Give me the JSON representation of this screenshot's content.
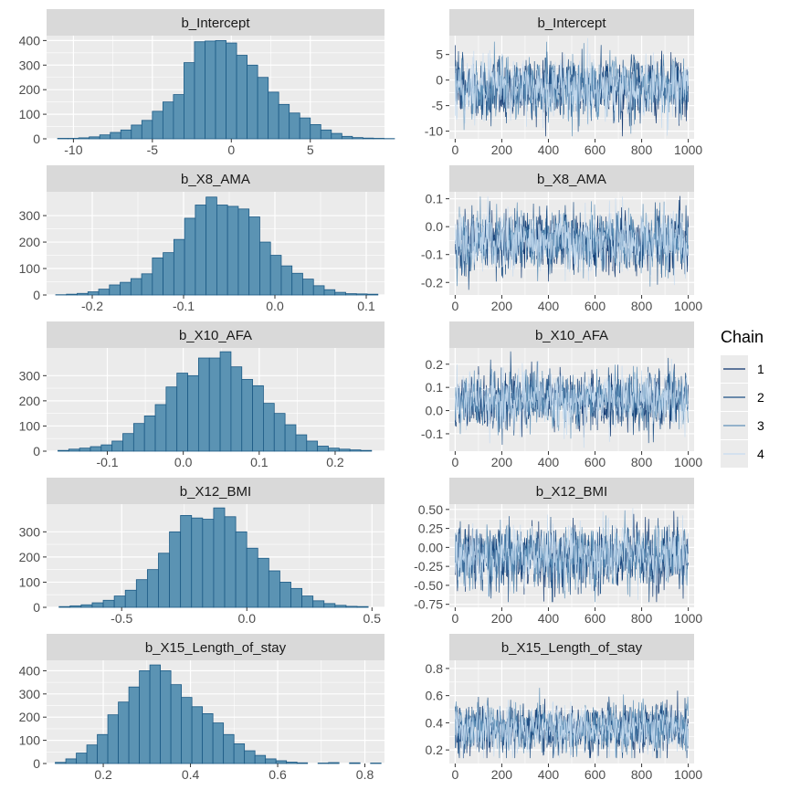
{
  "legend": {
    "title": "Chain",
    "placement": "right",
    "entries": [
      {
        "label": "1",
        "color": "#08306b"
      },
      {
        "label": "2",
        "color": "#1c4f85"
      },
      {
        "label": "3",
        "color": "#5f91b8"
      },
      {
        "label": "4",
        "color": "#c6dbef"
      }
    ]
  },
  "colors": {
    "panel_background": "#ebebeb",
    "strip_background": "#d9d9d9",
    "grid": "#ffffff",
    "hist_fill": "#5b93b3",
    "hist_outline": "#1c5a85"
  },
  "chart_data": [
    {
      "type": "bar",
      "title": "b_Intercept",
      "xlim": [
        -11.7,
        9.7
      ],
      "ylim": [
        0,
        420
      ],
      "xticks": [
        -10,
        -5,
        0,
        5
      ],
      "xtick_labels": [
        "-10",
        "-5",
        "0",
        "5"
      ],
      "yticks": [
        0,
        100,
        200,
        300,
        400
      ],
      "ytick_labels": [
        "0",
        "100",
        "200",
        "300",
        "400"
      ],
      "bin_start": -11.0,
      "bin_width": 0.6667,
      "values": [
        2,
        2,
        4,
        8,
        16,
        26,
        36,
        56,
        75,
        112,
        150,
        180,
        310,
        395,
        398,
        400,
        390,
        340,
        300,
        250,
        190,
        140,
        105,
        85,
        58,
        36,
        22,
        10,
        5,
        3,
        2,
        1
      ]
    },
    {
      "type": "line",
      "title": "b_Intercept",
      "xlim": [
        -25,
        1025
      ],
      "ylim": [
        -11.5,
        8.7
      ],
      "xticks": [
        0,
        200,
        400,
        600,
        800,
        1000
      ],
      "xtick_labels": [
        "0",
        "200",
        "400",
        "600",
        "800",
        "1000"
      ],
      "yticks": [
        -10,
        -5,
        0,
        5
      ],
      "ytick_labels": [
        "-10",
        "-5",
        "0",
        "5"
      ],
      "center": -1.5,
      "sd": 3.0,
      "bounds": [
        -11.0,
        8.2
      ]
    },
    {
      "type": "bar",
      "title": "b_X8_AMA",
      "xlim": [
        -0.25,
        0.12
      ],
      "ylim": [
        0,
        390
      ],
      "xticks": [
        -0.2,
        -0.1,
        0.0,
        0.1
      ],
      "xtick_labels": [
        "-0.2",
        "-0.1",
        "0.0",
        "0.1"
      ],
      "yticks": [
        0,
        100,
        200,
        300
      ],
      "ytick_labels": [
        "0",
        "100",
        "200",
        "300"
      ],
      "bin_start": -0.24,
      "bin_width": 0.01176,
      "values": [
        1,
        3,
        6,
        12,
        22,
        38,
        48,
        62,
        80,
        140,
        160,
        210,
        290,
        340,
        370,
        340,
        335,
        325,
        295,
        200,
        150,
        110,
        82,
        60,
        35,
        20,
        10,
        5,
        4,
        3
      ]
    },
    {
      "type": "line",
      "title": "b_X8_AMA",
      "xlim": [
        -25,
        1025
      ],
      "ylim": [
        -0.245,
        0.125
      ],
      "xticks": [
        0,
        200,
        400,
        600,
        800,
        1000
      ],
      "xtick_labels": [
        "0",
        "200",
        "400",
        "600",
        "800",
        "1000"
      ],
      "yticks": [
        -0.2,
        -0.1,
        0.0,
        0.1
      ],
      "ytick_labels": [
        "-0.2",
        "-0.1",
        "0.0",
        "0.1"
      ],
      "center": -0.05,
      "sd": 0.055,
      "bounds": [
        -0.23,
        0.11
      ]
    },
    {
      "type": "bar",
      "title": "b_X10_AFA",
      "xlim": [
        -0.18,
        0.265
      ],
      "ylim": [
        0,
        410
      ],
      "xticks": [
        -0.1,
        0.0,
        0.1,
        0.2
      ],
      "xtick_labels": [
        "-0.1",
        "0.0",
        "0.1",
        "0.2"
      ],
      "yticks": [
        0,
        100,
        200,
        300
      ],
      "ytick_labels": [
        "0",
        "100",
        "200",
        "300"
      ],
      "bin_start": -0.165,
      "bin_width": 0.01424,
      "values": [
        3,
        8,
        12,
        18,
        25,
        40,
        70,
        110,
        140,
        185,
        255,
        310,
        300,
        370,
        370,
        395,
        335,
        285,
        260,
        190,
        150,
        105,
        65,
        40,
        20,
        12,
        8,
        5,
        3
      ]
    },
    {
      "type": "line",
      "title": "b_X10_AFA",
      "xlim": [
        -25,
        1025
      ],
      "ylim": [
        -0.175,
        0.27
      ],
      "xticks": [
        0,
        200,
        400,
        600,
        800,
        1000
      ],
      "xtick_labels": [
        "0",
        "200",
        "400",
        "600",
        "800",
        "1000"
      ],
      "yticks": [
        -0.1,
        0.0,
        0.1,
        0.2
      ],
      "ytick_labels": [
        "-0.1",
        "0.0",
        "0.1",
        "0.2"
      ],
      "center": 0.045,
      "sd": 0.06,
      "bounds": [
        -0.16,
        0.255
      ]
    },
    {
      "type": "bar",
      "title": "b_X12_BMI",
      "xlim": [
        -0.8,
        0.55
      ],
      "ylim": [
        0,
        410
      ],
      "xticks": [
        -0.5,
        0.0,
        0.5
      ],
      "xtick_labels": [
        "-0.5",
        "0.0",
        "0.5"
      ],
      "yticks": [
        0,
        100,
        200,
        300
      ],
      "ytick_labels": [
        "0",
        "100",
        "200",
        "300"
      ],
      "bin_start": -0.75,
      "bin_width": 0.0441,
      "values": [
        3,
        6,
        10,
        18,
        28,
        45,
        68,
        110,
        150,
        215,
        300,
        365,
        355,
        350,
        395,
        360,
        300,
        235,
        195,
        145,
        100,
        75,
        45,
        26,
        15,
        8,
        4,
        3
      ]
    },
    {
      "type": "line",
      "title": "b_X12_BMI",
      "xlim": [
        -25,
        1025
      ],
      "ylim": [
        -0.79,
        0.57
      ],
      "xticks": [
        0,
        200,
        400,
        600,
        800,
        1000
      ],
      "xtick_labels": [
        "0",
        "200",
        "400",
        "600",
        "800",
        "1000"
      ],
      "yticks": [
        -0.75,
        -0.5,
        -0.25,
        0.0,
        0.25,
        0.5
      ],
      "ytick_labels": [
        "-0.75",
        "-0.50",
        "-0.25",
        "0.00",
        "0.25",
        "0.50"
      ],
      "center": -0.12,
      "sd": 0.2,
      "bounds": [
        -0.72,
        0.52
      ]
    },
    {
      "type": "bar",
      "title": "b_X15_Length_of_stay",
      "xlim": [
        0.07,
        0.845
      ],
      "ylim": [
        0,
        445
      ],
      "xticks": [
        0.2,
        0.4,
        0.6,
        0.8
      ],
      "xtick_labels": [
        "0.2",
        "0.4",
        "0.6",
        "0.8"
      ],
      "yticks": [
        0,
        100,
        200,
        300,
        400
      ],
      "ytick_labels": [
        "0",
        "100",
        "200",
        "300",
        "400"
      ],
      "bin_start": 0.09,
      "bin_width": 0.0241,
      "values": [
        5,
        20,
        45,
        80,
        125,
        210,
        265,
        330,
        400,
        425,
        400,
        340,
        285,
        245,
        215,
        175,
        125,
        85,
        55,
        35,
        20,
        12,
        6,
        3,
        0,
        2,
        4,
        0,
        3,
        0,
        2
      ]
    },
    {
      "type": "line",
      "title": "b_X15_Length_of_stay",
      "xlim": [
        -25,
        1025
      ],
      "ylim": [
        0.1,
        0.86
      ],
      "xticks": [
        0,
        200,
        400,
        600,
        800,
        1000
      ],
      "xtick_labels": [
        "0",
        "200",
        "400",
        "600",
        "800",
        "1000"
      ],
      "yticks": [
        0.2,
        0.4,
        0.6,
        0.8
      ],
      "ytick_labels": [
        "0.2",
        "0.4",
        "0.6",
        "0.8"
      ],
      "center": 0.36,
      "sd": 0.09,
      "bounds": [
        0.14,
        0.82
      ]
    }
  ]
}
